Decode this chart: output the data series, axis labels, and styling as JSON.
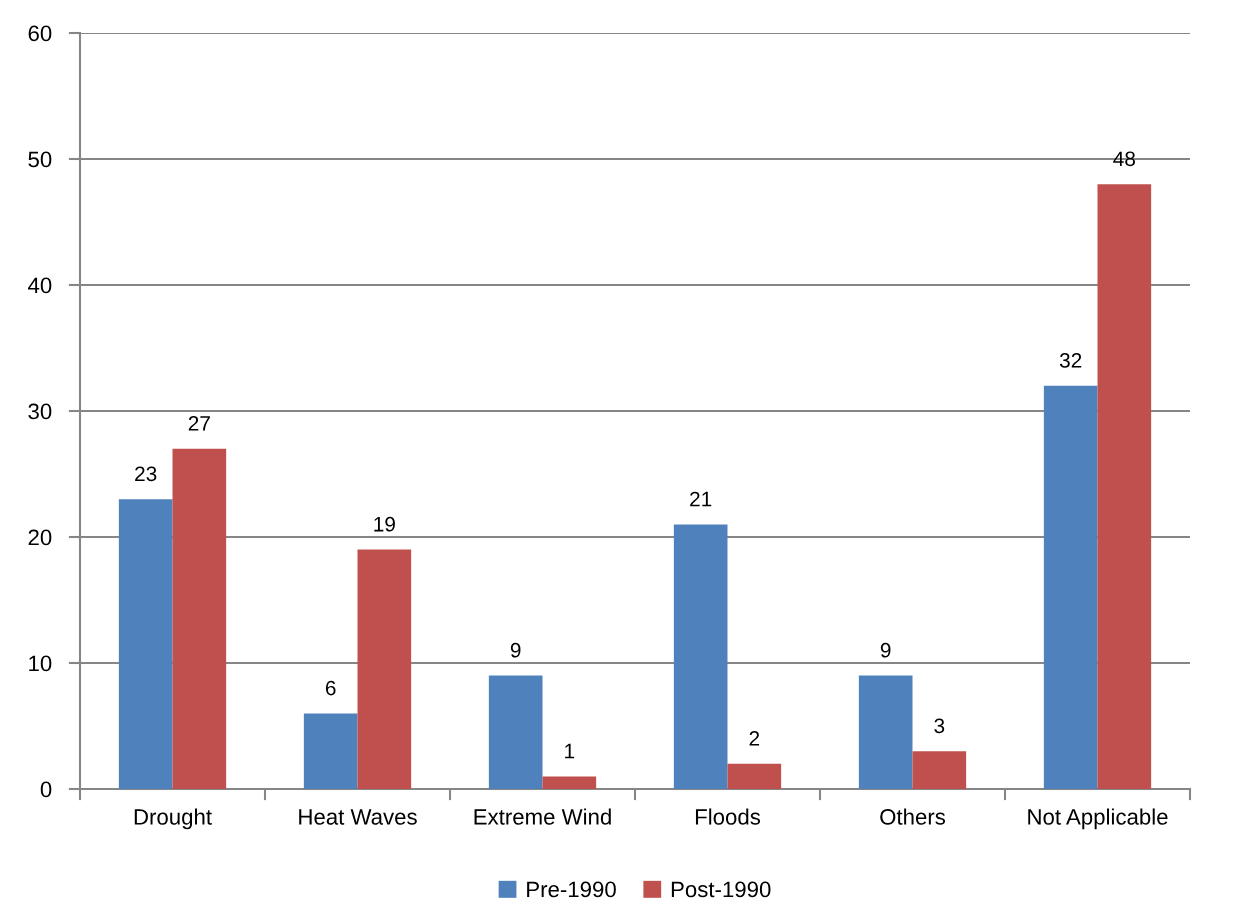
{
  "chart_data": {
    "type": "bar",
    "categories": [
      "Drought",
      "Heat Waves",
      "Extreme Wind",
      "Floods",
      "Others",
      "Not Applicable"
    ],
    "series": [
      {
        "name": "Pre-1990",
        "color": "#4f81bd",
        "values": [
          23,
          6,
          9,
          21,
          9,
          32
        ]
      },
      {
        "name": "Post-1990",
        "color": "#c0504d",
        "values": [
          27,
          19,
          1,
          2,
          3,
          48
        ]
      }
    ],
    "ylim": [
      0,
      60
    ],
    "yticks": [
      0,
      10,
      20,
      30,
      40,
      50,
      60
    ],
    "grid": "y",
    "legend": "bottom",
    "data_labels": true
  }
}
